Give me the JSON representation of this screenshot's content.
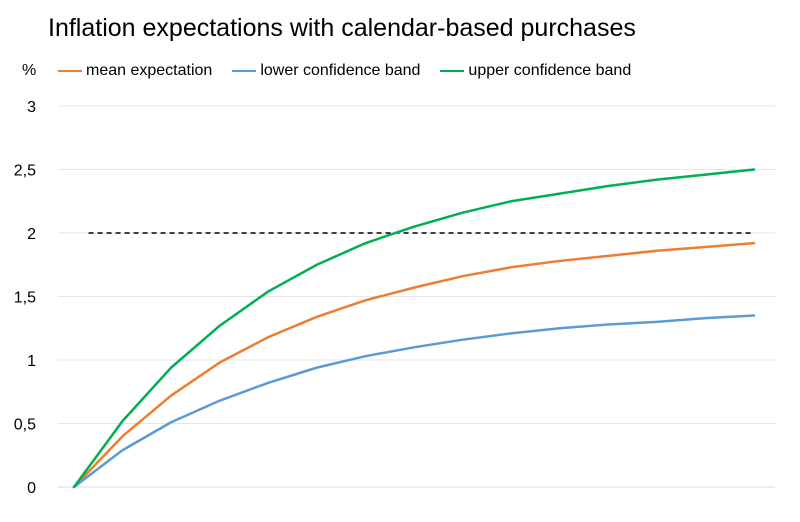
{
  "chart_data": {
    "type": "line",
    "title": "Inflation expectations with calendar-based purchases",
    "unit_label": "%",
    "xlabel": "",
    "ylabel": "",
    "ylim": [
      0,
      3
    ],
    "yticks": [
      "0",
      "0,5",
      "1",
      "1,5",
      "2",
      "2,5",
      "3"
    ],
    "ytick_values": [
      0,
      0.5,
      1,
      1.5,
      2,
      2.5,
      3
    ],
    "x": [
      0,
      1,
      2,
      3,
      4,
      5,
      6,
      7,
      8,
      9,
      10,
      11,
      12,
      13,
      14
    ],
    "grid": true,
    "legend_position": "top",
    "series": [
      {
        "name": "mean expectation",
        "color": "#ED7D31",
        "values": [
          0,
          0.4,
          0.72,
          0.98,
          1.18,
          1.34,
          1.47,
          1.57,
          1.66,
          1.73,
          1.78,
          1.82,
          1.86,
          1.89,
          1.92
        ]
      },
      {
        "name": "lower confidence band",
        "color": "#5B9BD5",
        "values": [
          0,
          0.29,
          0.51,
          0.68,
          0.82,
          0.94,
          1.03,
          1.1,
          1.16,
          1.21,
          1.25,
          1.28,
          1.3,
          1.33,
          1.35
        ]
      },
      {
        "name": "upper confidence band",
        "color": "#00B050",
        "values": [
          0,
          0.52,
          0.94,
          1.27,
          1.54,
          1.75,
          1.92,
          2.05,
          2.16,
          2.25,
          2.31,
          2.37,
          2.42,
          2.46,
          2.5
        ]
      }
    ],
    "reference_line": {
      "value": 2,
      "x_range": [
        0.3,
        14
      ],
      "style": "dashed",
      "color": "#000000"
    }
  }
}
